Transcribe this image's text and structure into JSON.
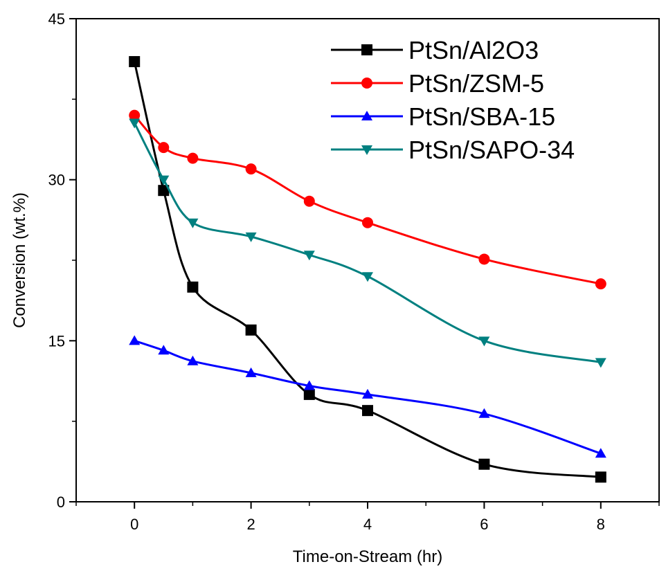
{
  "chart_data": {
    "type": "line",
    "title": "",
    "xlabel": "Time-on-Stream (hr)",
    "ylabel": "Conversion (wt.%)",
    "xlim": [
      -1,
      9
    ],
    "ylim": [
      0,
      45
    ],
    "xticks": [
      "0",
      "2",
      "4",
      "6",
      "8"
    ],
    "yticks": [
      "0",
      "15",
      "30",
      "45"
    ],
    "grid": false,
    "legend_position": "top-right",
    "x": [
      0,
      0.5,
      1,
      2,
      3,
      4,
      6,
      8
    ],
    "series": [
      {
        "name": "PtSn/Al2O3",
        "color": "#000000",
        "marker": "square",
        "values": [
          41,
          29,
          20,
          16,
          10,
          8.5,
          3.5,
          2.3
        ]
      },
      {
        "name": "PtSn/ZSM-5",
        "color": "#ff0000",
        "marker": "circle",
        "values": [
          36,
          33,
          32,
          31,
          28,
          26,
          22.6,
          20.3
        ]
      },
      {
        "name": "PtSn/SBA-15",
        "color": "#0000ff",
        "marker": "triangle-up",
        "values": [
          15,
          14.1,
          13.1,
          12,
          10.8,
          10,
          8.2,
          4.5
        ]
      },
      {
        "name": "PtSn/SAPO-34",
        "color": "#008080",
        "marker": "triangle-down",
        "values": [
          35.3,
          30,
          26,
          24.7,
          23,
          21,
          15,
          13
        ]
      }
    ]
  }
}
